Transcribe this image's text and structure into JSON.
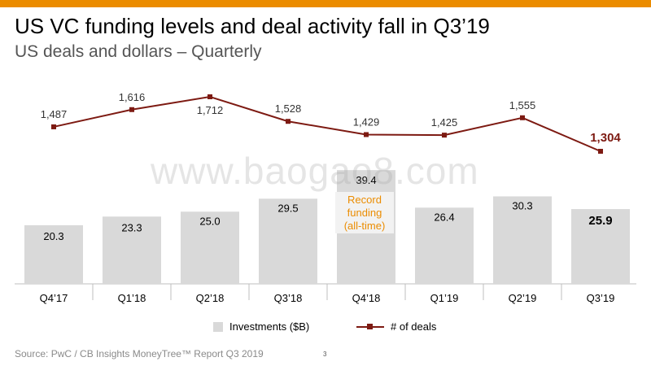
{
  "header": {
    "title": "US VC funding levels and deal activity fall in Q3’19",
    "subtitle": "US deals and dollars – Quarterly"
  },
  "chart_data": {
    "type": "bar",
    "categories": [
      "Q4’17",
      "Q1’18",
      "Q2’18",
      "Q3’18",
      "Q4’18",
      "Q1’19",
      "Q2’19",
      "Q3’19"
    ],
    "series": [
      {
        "name": "Investments ($B)",
        "type": "bar",
        "values": [
          20.3,
          23.3,
          25.0,
          29.5,
          39.4,
          26.4,
          30.3,
          25.9
        ],
        "labels": [
          "20.3",
          "23.3",
          "25.0",
          "29.5",
          "39.4",
          "26.4",
          "30.3",
          "25.9"
        ],
        "color": "#d9d9d9"
      },
      {
        "name": "# of deals",
        "type": "line",
        "values": [
          1487,
          1616,
          1712,
          1528,
          1429,
          1425,
          1555,
          1304
        ],
        "labels": [
          "1,487",
          "1,616",
          "1,712",
          "1,528",
          "1,429",
          "1,425",
          "1,555",
          "1,304"
        ],
        "color": "#7d1a12"
      }
    ],
    "annotation": [
      "Record",
      "funding",
      "(all-time)"
    ],
    "legend": "bottom"
  },
  "footer": {
    "source": "Source: PwC / CB Insights MoneyTree™ Report Q3 2019",
    "page": "3"
  },
  "watermark": "www.baogao8.com"
}
